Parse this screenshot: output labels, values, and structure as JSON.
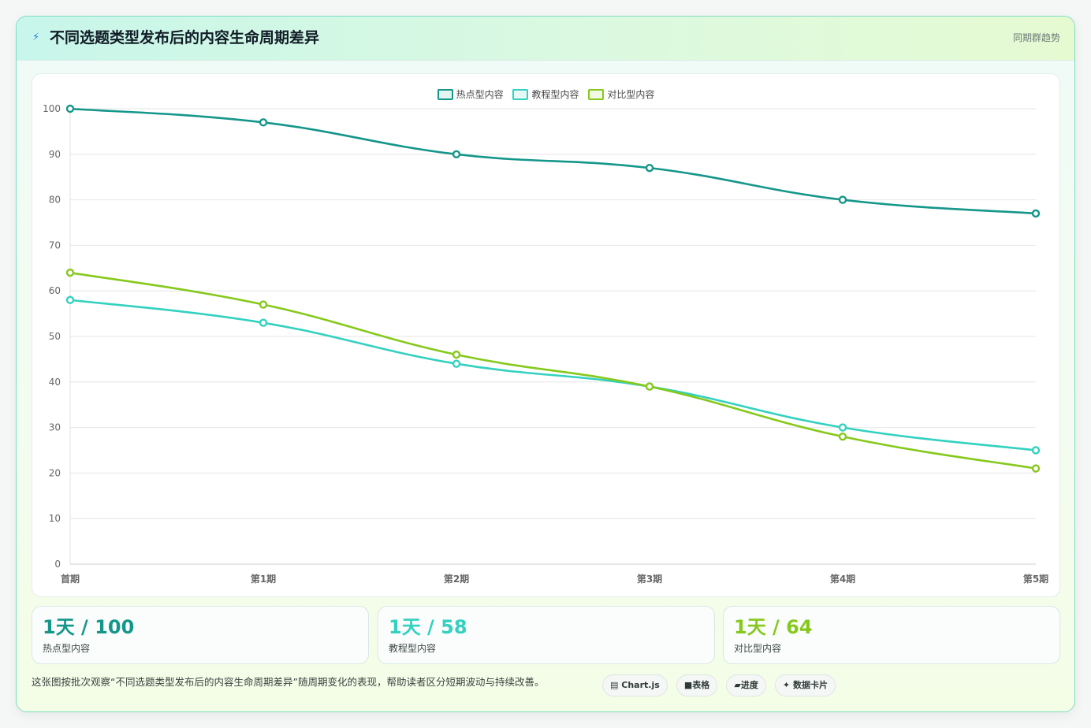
{
  "header": {
    "icon": "lightning-icon",
    "title": "不同选题类型发布后的内容生命周期差异",
    "tag": "同期群趋势"
  },
  "chart_data": {
    "type": "line",
    "categories": [
      "首期",
      "第1期",
      "第2期",
      "第3期",
      "第4期",
      "第5期"
    ],
    "series": [
      {
        "name": "热点型内容",
        "color": "#14968a",
        "values": [
          100,
          97,
          90,
          87,
          80,
          77
        ]
      },
      {
        "name": "教程型内容",
        "color": "#33d1c0",
        "values": [
          58,
          53,
          44,
          39,
          30,
          25
        ]
      },
      {
        "name": "对比型内容",
        "color": "#86c91c",
        "values": [
          64,
          57,
          46,
          39,
          28,
          21
        ]
      }
    ],
    "title": "",
    "xlabel": "",
    "ylabel": "",
    "ylim": [
      0,
      100
    ],
    "yticks": [
      "0",
      "10",
      "20",
      "30",
      "40",
      "50",
      "60",
      "70",
      "80",
      "90",
      "100"
    ],
    "grid": true,
    "legend_position": "top-center"
  },
  "stats": [
    {
      "value": "1天 / 100",
      "label": "热点型内容",
      "color": "#14968a"
    },
    {
      "value": "1天 / 58",
      "label": "教程型内容",
      "color": "#33d1c0"
    },
    {
      "value": "1天 / 64",
      "label": "对比型内容",
      "color": "#86c91c"
    }
  ],
  "footer": {
    "description": "这张图按批次观察“不同选题类型发布后的内容生命周期差异”随周期变化的表现，帮助读者区分短期波动与持续改善。",
    "chips": [
      {
        "icon": "chart-icon",
        "glyph": "▤",
        "label": "Chart.js"
      },
      {
        "icon": "table-icon",
        "glyph": "■",
        "label": "表格"
      },
      {
        "icon": "progress-icon",
        "glyph": "▰",
        "label": "进度"
      },
      {
        "icon": "sparkle-icon",
        "glyph": "✦",
        "label": "数据卡片"
      }
    ]
  }
}
